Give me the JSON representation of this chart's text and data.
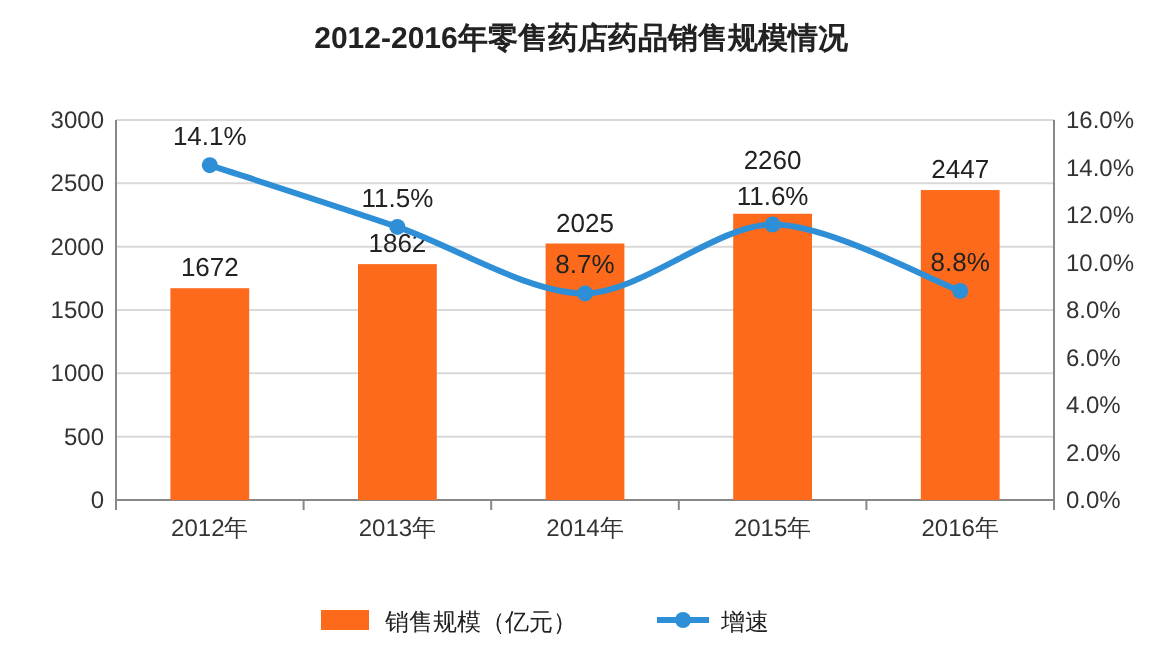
{
  "chart_data": {
    "type": "bar",
    "title": "2012-2016年零售药店药品销售规模情况",
    "categories": [
      "2012年",
      "2013年",
      "2014年",
      "2015年",
      "2016年"
    ],
    "series": [
      {
        "name": "销售规模（亿元）",
        "color": "#fe6a1b",
        "values": [
          1672,
          1862,
          2025,
          2260,
          2447
        ],
        "value_labels": [
          "1672",
          "1862",
          "2025",
          "2260",
          "2447"
        ]
      },
      {
        "name": "增速",
        "type": "line",
        "axis": "y2",
        "color": "#2e8fd6",
        "values": [
          14.1,
          11.5,
          8.7,
          11.6,
          8.8
        ],
        "value_labels": [
          "14.1%",
          "11.5%",
          "8.7%",
          "11.6%",
          "8.8%"
        ],
        "marker": "circle",
        "line_style": "solid"
      }
    ],
    "ylim": [
      0,
      3000
    ],
    "yticks": [
      0,
      500,
      1000,
      1500,
      2000,
      2500,
      3000
    ],
    "y2lim": [
      0,
      16
    ],
    "y2ticks": [
      {
        "value": 0,
        "label": "0.0%"
      },
      {
        "value": 2,
        "label": "2.0%"
      },
      {
        "value": 4,
        "label": "4.0%"
      },
      {
        "value": 6,
        "label": "6.0%"
      },
      {
        "value": 8,
        "label": "8.0%"
      },
      {
        "value": 10,
        "label": "10.0%"
      },
      {
        "value": 12,
        "label": "12.0%"
      },
      {
        "value": 14,
        "label": "14.0%"
      },
      {
        "value": 16,
        "label": "16.0%"
      }
    ],
    "grid": "y",
    "legend": "bottom"
  }
}
